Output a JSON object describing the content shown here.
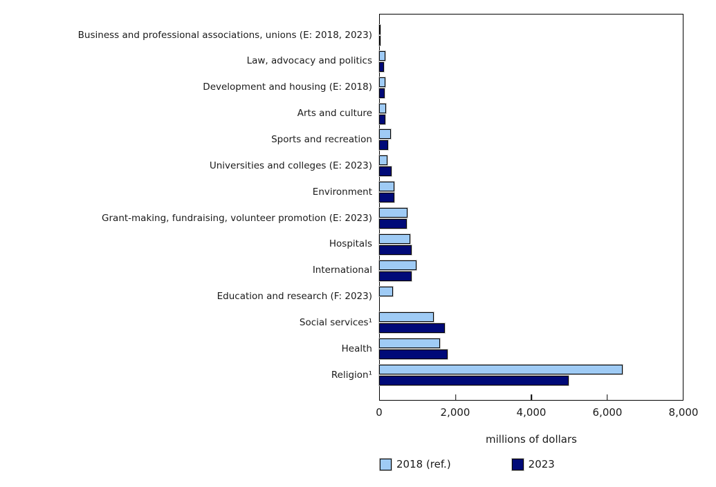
{
  "colors": {
    "series_2018": "#9fcbf5",
    "series_2023": "#000a78",
    "axis": "#000000",
    "background": "#ffffff"
  },
  "chart_data": {
    "type": "bar",
    "orientation": "horizontal",
    "title": "",
    "xlabel": "millions of dollars",
    "ylabel": "",
    "xlim": [
      0,
      8000
    ],
    "grid": false,
    "plot_border": true,
    "legend_position": "bottom",
    "x_ticks": [
      {
        "value": 0,
        "label": "0"
      },
      {
        "value": 2000,
        "label": "2,000"
      },
      {
        "value": 4000,
        "label": "4,000"
      },
      {
        "value": 6000,
        "label": "6,000"
      },
      {
        "value": 8000,
        "label": "8,000"
      }
    ],
    "categories": [
      "Business and professional associations, unions (E: 2018, 2023)",
      "Law, advocacy and politics",
      "Development and housing (E: 2018)",
      "Arts and culture",
      "Sports and recreation",
      "Universities and colleges (E: 2023)",
      "Environment",
      "Grant-making, fundraising, volunteer promotion (E: 2023)",
      "Hospitals",
      "International",
      "Education and research (F: 2023)",
      "Social services¹",
      "Health",
      "Religion¹"
    ],
    "series": [
      {
        "name": "2018 (ref.)",
        "color": "#9fcbf5",
        "values": [
          15,
          165,
          165,
          185,
          310,
          215,
          395,
          745,
          815,
          985,
          370,
          1430,
          1605,
          6395
        ]
      },
      {
        "name": "2023",
        "color": "#000a78",
        "values": [
          15,
          130,
          145,
          165,
          235,
          330,
          400,
          730,
          855,
          855,
          0,
          1725,
          1805,
          4990
        ]
      }
    ]
  },
  "legend": {
    "item_2018": "2018 (ref.)",
    "item_2023": "2023"
  }
}
